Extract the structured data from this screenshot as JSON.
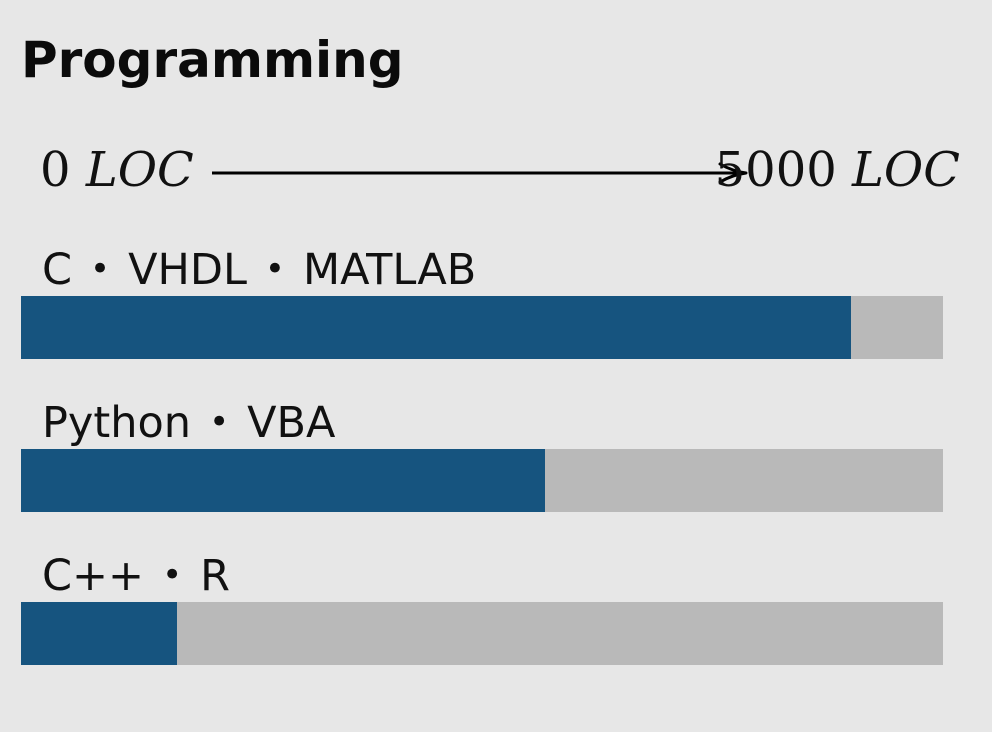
{
  "title": "Programming",
  "scale": {
    "min_label": "0",
    "max_label": "5000",
    "unit": "LOC",
    "min": 0,
    "max": 5000
  },
  "separator": "•",
  "skills": [
    {
      "languages": [
        "C",
        "VHDL",
        "MATLAB"
      ],
      "value": 4500
    },
    {
      "languages": [
        "Python",
        "VBA"
      ],
      "value": 2840
    },
    {
      "languages": [
        "C++",
        "R"
      ],
      "value": 845
    }
  ],
  "colors": {
    "background": "#e7e7e7",
    "bar_fill": "#16547f",
    "bar_track": "#b9b9b9",
    "text": "#111111"
  }
}
